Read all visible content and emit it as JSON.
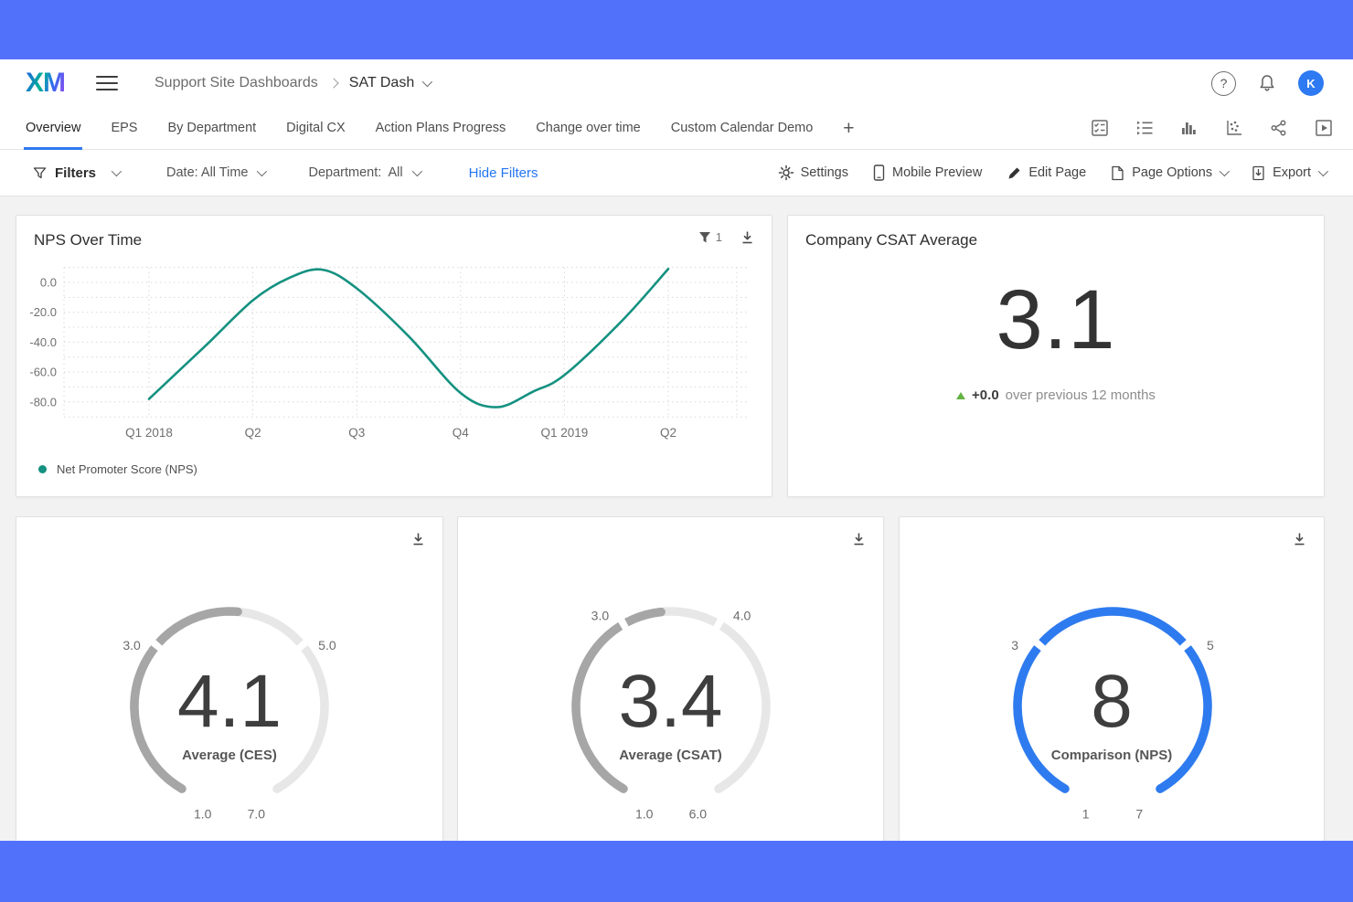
{
  "app": {
    "top_bar_color": "#5271fa",
    "accent_blue": "#2e7af0",
    "teal": "#149180"
  },
  "header": {
    "logo_text": "XM",
    "breadcrumb": {
      "section": "Support Site Dashboards",
      "current": "SAT Dash"
    },
    "avatar_initial": "K"
  },
  "tabs": {
    "items": [
      "Overview",
      "EPS",
      "By Department",
      "Digital CX",
      "Action Plans Progress",
      "Change over time",
      "Custom Calendar Demo"
    ],
    "active": "Overview",
    "add_button": "+"
  },
  "filter_bar": {
    "filters_label": "Filters",
    "date_filter": "Date: All Time",
    "department_filter": "Department:  All",
    "hide_filters_link": "Hide Filters",
    "settings_label": "Settings",
    "mobile_preview_label": "Mobile Preview",
    "edit_page_label": "Edit Page",
    "page_options_label": "Page Options",
    "export_label": "Export"
  },
  "nps_card": {
    "title": "NPS Over Time",
    "filter_badge_count": "1",
    "legend_label": "Net Promoter Score (NPS)"
  },
  "csat_card": {
    "title": "Company CSAT Average",
    "value": "3.1",
    "delta": "+0.0",
    "delta_context": "over previous 12 months"
  },
  "gauges": [
    {
      "value": "4.1",
      "numeric_value": 4.1,
      "caption": "Average (CES)",
      "min": 1,
      "max": 7,
      "ticks": [
        3,
        5
      ],
      "labels": {
        "top_left": "3.0",
        "top_right": "5.0",
        "bottom_left": "1.0",
        "bottom_right": "7.0"
      },
      "fill_color": "#a6a6a6",
      "track_color": "#e7e7e7"
    },
    {
      "value": "3.4",
      "numeric_value": 3.4,
      "caption": "Average (CSAT)",
      "min": 1,
      "max": 6,
      "ticks": [
        3,
        4
      ],
      "labels": {
        "top_left": "3.0",
        "top_right": "4.0",
        "bottom_left": "1.0",
        "bottom_right": "6.0"
      },
      "fill_color": "#a6a6a6",
      "track_color": "#e7e7e7"
    },
    {
      "value": "8",
      "numeric_value": 8,
      "caption": "Comparison (NPS)",
      "min": 1,
      "max": 7,
      "ticks": [
        3,
        5
      ],
      "labels": {
        "top_left": "3",
        "top_right": "5",
        "bottom_left": "1",
        "bottom_right": "7"
      },
      "fill_color": "#2e7bf0",
      "track_color": "#e7e7e7"
    }
  ],
  "chart_data": [
    {
      "type": "line",
      "title": "NPS Over Time",
      "xlabel": "",
      "ylabel": "",
      "x_tick_labels": [
        "Q1 2018",
        "Q2",
        "Q3",
        "Q4",
        "Q1 2019",
        "Q2"
      ],
      "y_tick_labels": [
        0,
        -20,
        -40,
        -60,
        -80
      ],
      "ylim": [
        -90,
        10
      ],
      "grid": "dotted",
      "legend_position": "bottom-left",
      "series": [
        {
          "name": "Net Promoter Score (NPS)",
          "color": "#149180",
          "points_quarter_units": [
            [
              0,
              -78
            ],
            [
              0.55,
              -42
            ],
            [
              1,
              -12
            ],
            [
              1.35,
              3
            ],
            [
              1.67,
              8.5
            ],
            [
              2,
              -4
            ],
            [
              2.5,
              -36
            ],
            [
              3,
              -74
            ],
            [
              3.35,
              -83.5
            ],
            [
              3.7,
              -73
            ],
            [
              4,
              -62
            ],
            [
              4.55,
              -26
            ],
            [
              5,
              9
            ]
          ],
          "quarterly_values": {
            "Q1 2018": -78,
            "Q2 2018": -12,
            "Q3 2018": -4,
            "Q4 2018": -74,
            "Q1 2019": -62,
            "Q2 2019": 9
          }
        }
      ]
    },
    {
      "type": "gauge",
      "title": "Average (CES)",
      "value": 4.1,
      "min": 1,
      "max": 7,
      "ticks": [
        3,
        5
      ]
    },
    {
      "type": "gauge",
      "title": "Average (CSAT)",
      "value": 3.4,
      "min": 1,
      "max": 6,
      "ticks": [
        3,
        4
      ]
    },
    {
      "type": "gauge",
      "title": "Comparison (NPS)",
      "value": 8,
      "min": 1,
      "max": 7,
      "ticks": [
        3,
        5
      ]
    }
  ],
  "icons": {
    "header": [
      "hamburger-icon",
      "help-icon",
      "bell-icon"
    ],
    "tab_toolbar": [
      "checklist-icon",
      "bullet-list-icon",
      "bar-chart-icon",
      "scatter-plot-icon",
      "share-icon",
      "slideshow-icon"
    ],
    "filter_bar": [
      "funnel-icon",
      "gear-icon",
      "phone-icon",
      "pencil-icon",
      "page-icon",
      "export-icon"
    ],
    "cards": [
      "funnel-filled-icon",
      "download-icon"
    ]
  }
}
